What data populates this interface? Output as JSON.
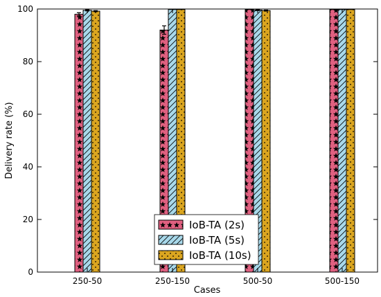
{
  "chart_data": {
    "type": "bar",
    "title": "",
    "xlabel": "Cases",
    "ylabel": "Delivery rate (%)",
    "categories": [
      "250-50",
      "250-150",
      "500-50",
      "500-150"
    ],
    "ylim": [
      0,
      100
    ],
    "yticks": [
      0,
      20,
      40,
      60,
      80,
      100
    ],
    "grid": false,
    "legend_position": "bottom-center",
    "series": [
      {
        "name": "IoB-TA (2s)",
        "values": [
          98.0,
          92.0,
          99.8,
          99.8
        ],
        "errors": [
          0.6,
          1.6,
          0.0,
          0.0
        ],
        "color": "#e06080",
        "pattern": "stars"
      },
      {
        "name": "IoB-TA (5s)",
        "values": [
          99.5,
          99.8,
          99.6,
          99.8
        ],
        "errors": [
          0.2,
          0.0,
          0.2,
          0.0
        ],
        "color": "#a8d8ea",
        "pattern": "diagonal-hatch"
      },
      {
        "name": "IoB-TA (10s)",
        "values": [
          99.2,
          99.8,
          99.4,
          99.8
        ],
        "errors": [
          0.2,
          0.0,
          0.2,
          0.0
        ],
        "color": "#daa520",
        "pattern": "dots"
      }
    ]
  }
}
